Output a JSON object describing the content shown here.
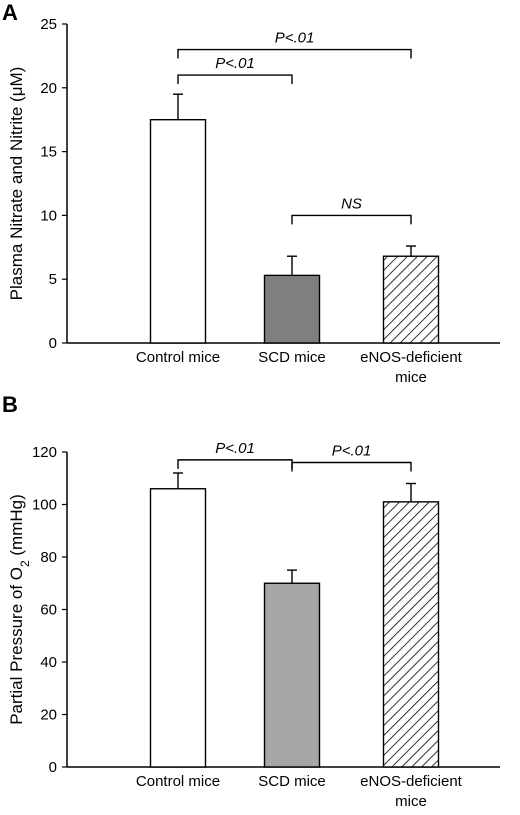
{
  "chart_data": [
    {
      "type": "bar",
      "panel_label": "A",
      "title": "",
      "xlabel": "",
      "ylabel": "Plasma Nitrate and Nitrite (μM)",
      "categories": [
        "Control mice",
        "SCD mice",
        "eNOS-deficient mice"
      ],
      "category_lines": [
        [
          "Control mice"
        ],
        [
          "SCD mice"
        ],
        [
          "eNOS-deficient",
          "mice"
        ]
      ],
      "values": [
        17.5,
        5.3,
        6.8
      ],
      "error_upper": [
        2.0,
        1.5,
        0.8
      ],
      "ylim": [
        0,
        25
      ],
      "yticks": [
        0,
        5,
        10,
        15,
        20,
        25
      ],
      "grid": false,
      "bar_fills": [
        "white",
        "dark-gray",
        "hatched"
      ],
      "colors": {
        "bar_dark": "#7f7f7f",
        "bar_white": "#ffffff",
        "line": "#000000"
      },
      "comparisons": [
        {
          "from": 0,
          "to": 1,
          "label": "P<.01",
          "y": 21
        },
        {
          "from": 0,
          "to": 2,
          "label": "P<.01",
          "y": 23
        },
        {
          "from": 1,
          "to": 2,
          "label": "NS",
          "y": 10
        }
      ]
    },
    {
      "type": "bar",
      "panel_label": "B",
      "title": "",
      "xlabel": "",
      "ylabel": "Partial Pressure of O2 (mmHg)",
      "ylabel_parts": {
        "before": "Partial Pressure  of O",
        "sub": "2",
        "after": " (mmHg)"
      },
      "categories": [
        "Control mice",
        "SCD mice",
        "eNOS-deficient mice"
      ],
      "category_lines": [
        [
          "Control mice"
        ],
        [
          "SCD mice"
        ],
        [
          "eNOS-deficient",
          "mice"
        ]
      ],
      "values": [
        106,
        70,
        101
      ],
      "error_upper": [
        6,
        5,
        7
      ],
      "ylim": [
        0,
        120
      ],
      "yticks": [
        0,
        20,
        40,
        60,
        80,
        100,
        120
      ],
      "grid": false,
      "bar_fills": [
        "white",
        "light-gray",
        "hatched"
      ],
      "colors": {
        "bar_light": "#a6a6a6",
        "bar_white": "#ffffff",
        "line": "#000000"
      },
      "comparisons": [
        {
          "from": 0,
          "to": 1,
          "label": "P<.01",
          "y": 117
        },
        {
          "from": 1,
          "to": 2,
          "label": "P<.01",
          "y": 116
        }
      ]
    }
  ]
}
